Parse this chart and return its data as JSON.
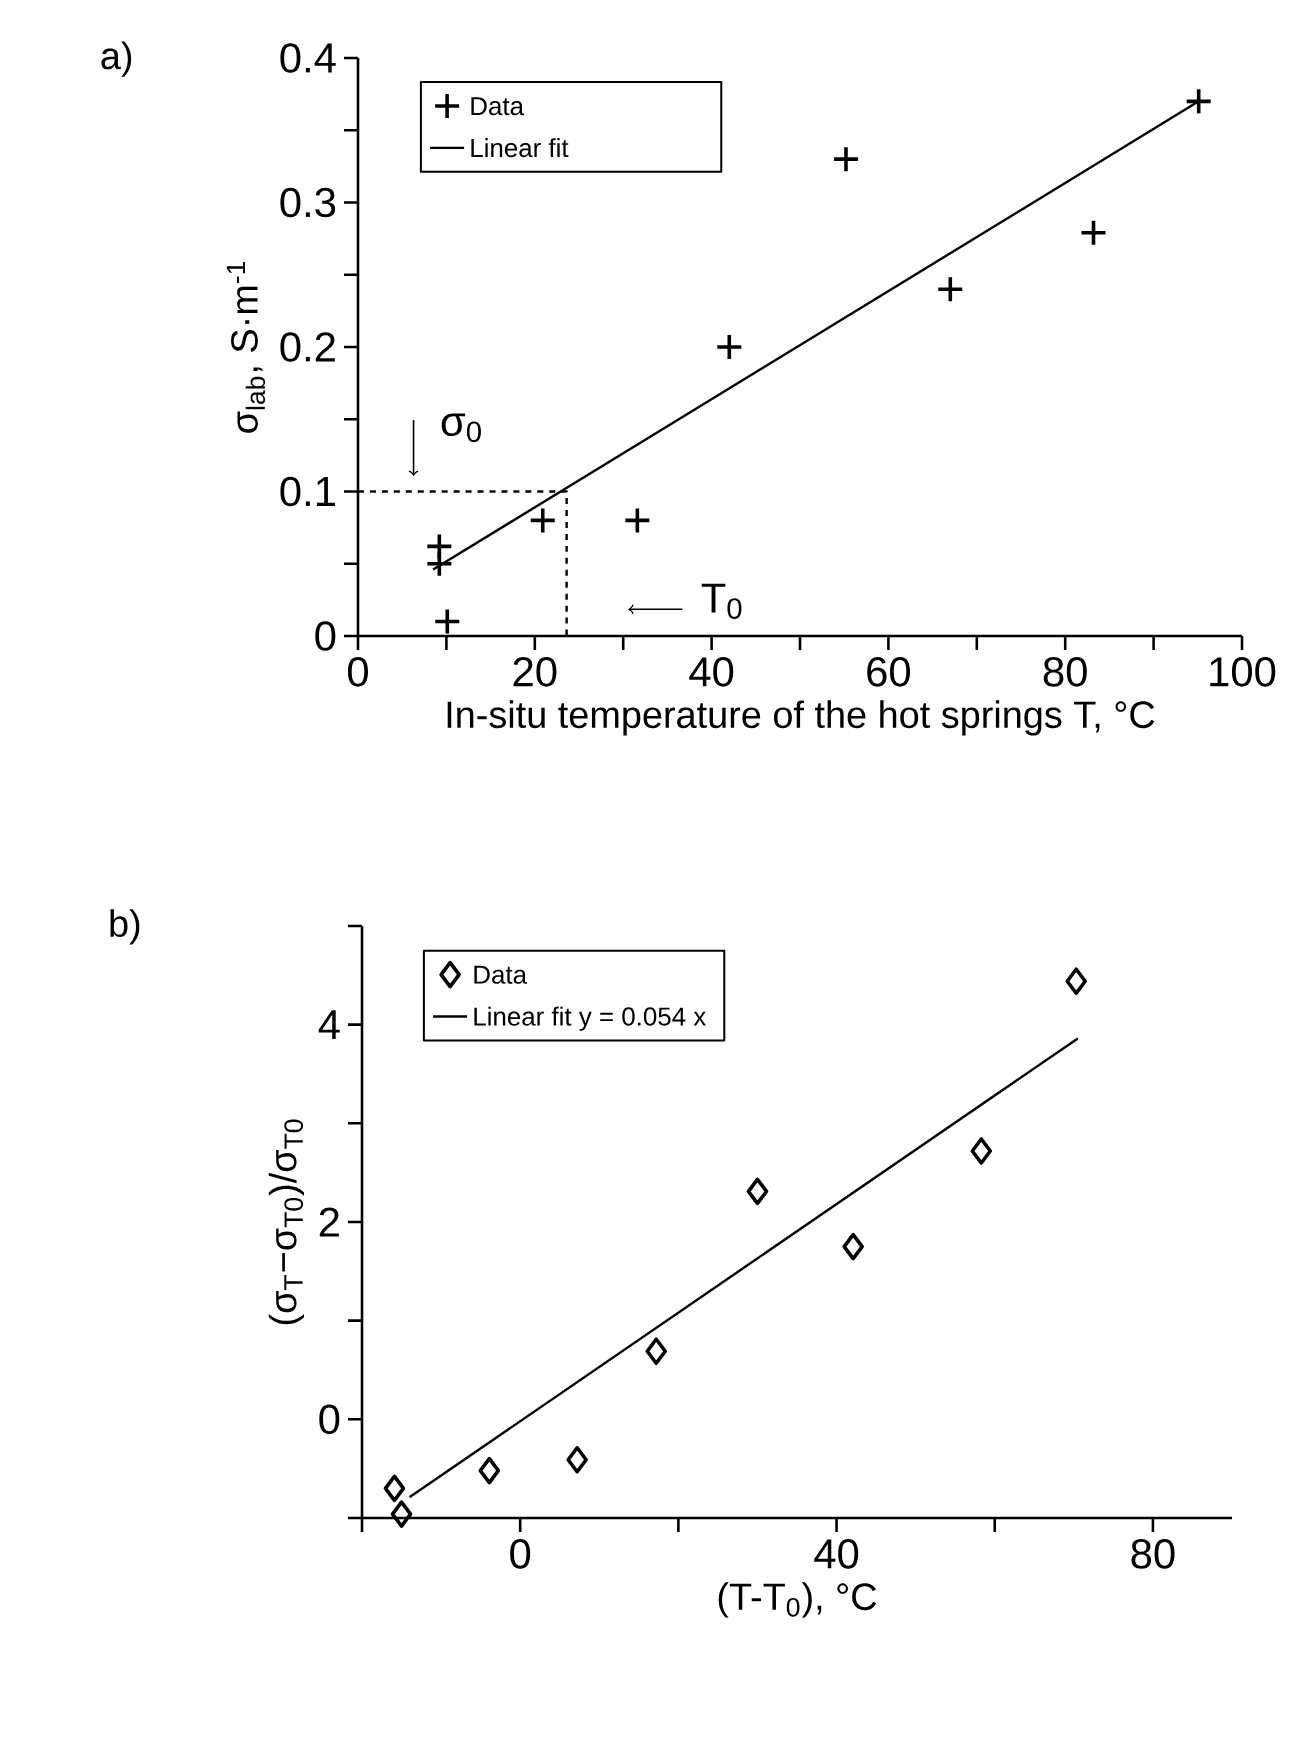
{
  "chart_data": [
    {
      "type": "scatter",
      "title": "a)",
      "xlabel": "In-situ temperature of the hot springs T, °C",
      "ylabel": "σ$_{lab}$, S·m$^{-1}$",
      "xlim": [
        0,
        100
      ],
      "ylim": [
        0,
        0.4
      ],
      "xticks": [
        0,
        {
          "value": 10,
          "label": null
        },
        20,
        {
          "value": 30,
          "label": null
        },
        40,
        {
          "value": 50,
          "label": null
        },
        60,
        {
          "value": 70,
          "label": null
        },
        80,
        {
          "value": 90,
          "label": null
        },
        100
      ],
      "yticks": [
        0,
        {
          "value": 0.05,
          "label": null
        },
        0.1,
        {
          "value": 0.15,
          "label": null
        },
        0.2,
        {
          "value": 0.25,
          "label": null
        },
        0.3,
        {
          "value": 0.35,
          "label": null
        },
        0.4
      ],
      "legend": "top left",
      "series": [
        {
          "name": "Data",
          "marker": "cross",
          "color": "#000000",
          "x": [
            9.2,
            9.2,
            10.1,
            20.9,
            31.6,
            42.0,
            55.2,
            67.0,
            83.2,
            95.1
          ],
          "values": [
            0.062,
            0.05,
            0.01,
            0.08,
            0.08,
            0.2,
            0.33,
            0.24,
            0.279,
            0.37
          ]
        },
        {
          "name": "Linear fit",
          "type": "line",
          "line_style": "solid",
          "color": "#000000",
          "x": [
            8.5,
            95.1
          ],
          "values": [
            0.046,
            0.37
          ]
        },
        {
          "type": "line",
          "line_style": "dashed",
          "color": "#000000",
          "x": [
            0,
            23.6,
            23.6
          ],
          "values": [
            0.1,
            0.1,
            0
          ]
        }
      ],
      "annotations": [
        "σ$_{0}$",
        "T$_{0}$"
      ]
    },
    {
      "type": "scatter",
      "title": "b)",
      "xlabel": "(T-T$_{0}$), °C",
      "ylabel": "(σ$_{T}$−σ$_{T0}$)/σ$_{T0}$",
      "xlim": [
        -20,
        90
      ],
      "ylim": [
        -1,
        5
      ],
      "xticks": [
        {
          "value": -20,
          "label": null
        },
        0,
        {
          "value": 20,
          "label": null
        },
        40,
        {
          "value": 60,
          "label": null
        },
        80
      ],
      "yticks": [
        {
          "value": -1,
          "label": null
        },
        0,
        {
          "value": 1,
          "label": null
        },
        2,
        {
          "value": 3,
          "label": null
        },
        4,
        {
          "value": 5,
          "label": null
        }
      ],
      "legend": "top left",
      "series": [
        {
          "name": "Data",
          "marker": "diamond",
          "color": "#000000",
          "x": [
            -15.9,
            -15.0,
            -3.9,
            7.2,
            17.2,
            30.0,
            42.1,
            58.3,
            70.3
          ],
          "values": [
            -0.7,
            -0.96,
            -0.52,
            -0.41,
            0.69,
            2.31,
            1.75,
            2.72,
            4.44
          ]
        },
        {
          "name": "Linear fit y = 0.054 x",
          "type": "line",
          "line_style": "solid",
          "color": "#000000",
          "x": [
            -14.0,
            70.5
          ],
          "values": [
            -0.79,
            3.86
          ]
        }
      ]
    }
  ]
}
